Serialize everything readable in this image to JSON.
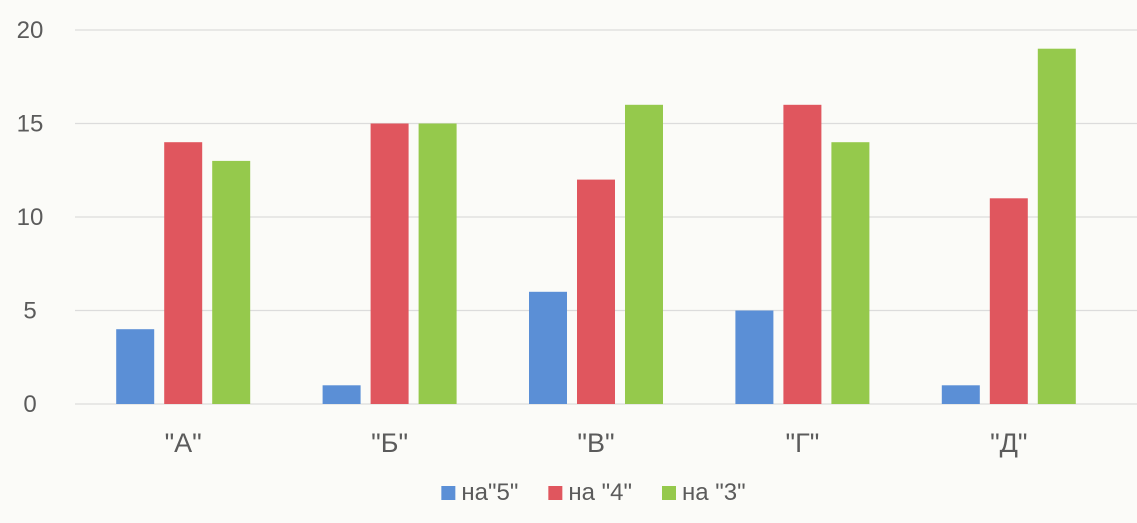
{
  "chart_data": {
    "type": "bar",
    "categories": [
      "\"А\"",
      "\"Б\"",
      "\"В\"",
      "\"Г\"",
      "\"Д\""
    ],
    "series": [
      {
        "name": "на\"5\"",
        "color": "#5b8fd6",
        "values": [
          4,
          1,
          6,
          5,
          1
        ]
      },
      {
        "name": "на \"4\"",
        "color": "#e0565e",
        "values": [
          14,
          15,
          12,
          16,
          11
        ]
      },
      {
        "name": "на \"3\"",
        "color": "#95c94c",
        "values": [
          13,
          15,
          16,
          14,
          19
        ]
      }
    ],
    "ylim": [
      0,
      20
    ],
    "yticks": [
      0,
      5,
      10,
      15,
      20
    ],
    "grid": true,
    "legend_position": "bottom",
    "gridline_color": "#dcdcdc"
  }
}
